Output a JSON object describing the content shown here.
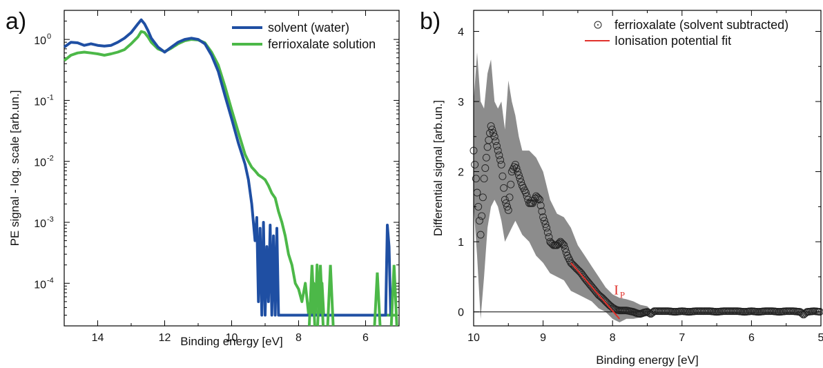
{
  "chart_data": [
    {
      "panel": "a)",
      "type": "line",
      "xlabel": "Binding energy [eV]",
      "ylabel": "PE signal - log. scale [arb.un.]",
      "xlim": [
        15,
        5
      ],
      "ylim": [
        2e-05,
        3
      ],
      "y_scale": "log",
      "x_ticks": [
        14,
        12,
        10,
        8,
        6
      ],
      "y_ticks": [
        {
          "value": 1,
          "base": "10",
          "exp": "0"
        },
        {
          "value": 0.1,
          "base": "10",
          "exp": "-1"
        },
        {
          "value": 0.01,
          "base": "10",
          "exp": "-2"
        },
        {
          "value": 0.001,
          "base": "10",
          "exp": "-3"
        },
        {
          "value": 0.0001,
          "base": "10",
          "exp": "-4"
        }
      ],
      "legend_position": "top-right",
      "series": [
        {
          "name": "solvent (water)",
          "color": "#1f4fa3",
          "x": [
            15.0,
            14.8,
            14.6,
            14.4,
            14.2,
            14.0,
            13.8,
            13.6,
            13.4,
            13.2,
            13.0,
            12.8,
            12.7,
            12.6,
            12.5,
            12.4,
            12.2,
            12.0,
            11.8,
            11.6,
            11.4,
            11.2,
            11.0,
            10.8,
            10.6,
            10.4,
            10.2,
            10.0,
            9.8,
            9.6,
            9.5,
            9.4,
            9.3,
            9.25,
            9.2,
            9.15,
            9.1,
            9.05,
            9.0,
            8.95,
            8.9,
            8.85,
            8.8,
            8.75,
            8.7,
            8.65,
            8.6,
            5.4,
            5.35,
            5.3,
            5.25,
            5.2
          ],
          "y": [
            0.75,
            0.9,
            0.88,
            0.8,
            0.85,
            0.8,
            0.78,
            0.8,
            0.9,
            1.05,
            1.3,
            1.8,
            2.1,
            1.8,
            1.4,
            1.05,
            0.75,
            0.62,
            0.75,
            0.9,
            1.0,
            1.05,
            1.0,
            0.85,
            0.55,
            0.3,
            0.12,
            0.05,
            0.02,
            0.009,
            0.005,
            0.002,
            0.0005,
            0.0012,
            5e-05,
            0.0008,
            3e-05,
            0.001,
            3e-05,
            0.0004,
            5e-05,
            0.0009,
            3e-05,
            0.0006,
            3e-05,
            0.0008,
            3e-05,
            3e-05,
            0.0009,
            0.0004,
            3e-05,
            3e-05
          ]
        },
        {
          "name": "ferrioxalate solution",
          "color": "#4cb848",
          "x": [
            15.0,
            14.8,
            14.6,
            14.4,
            14.2,
            14.0,
            13.8,
            13.6,
            13.4,
            13.2,
            13.0,
            12.8,
            12.7,
            12.6,
            12.5,
            12.4,
            12.2,
            12.0,
            11.8,
            11.6,
            11.4,
            11.2,
            11.0,
            10.8,
            10.6,
            10.4,
            10.2,
            10.0,
            9.8,
            9.6,
            9.5,
            9.4,
            9.3,
            9.2,
            9.1,
            9.0,
            8.9,
            8.8,
            8.7,
            8.6,
            8.5,
            8.4,
            8.3,
            8.2,
            8.1,
            8.0,
            7.9,
            7.8,
            7.7,
            7.65,
            7.6,
            7.55,
            7.5,
            7.45,
            7.4,
            7.35,
            7.3,
            7.25,
            7.2,
            7.1,
            7.0,
            6.9,
            6.8,
            6.7,
            6.6,
            6.5,
            6.4,
            6.3,
            6.2,
            6.1,
            6.0,
            5.9,
            5.8,
            5.7,
            5.6,
            5.5,
            5.4,
            5.3,
            5.2,
            5.1
          ],
          "y": [
            0.45,
            0.55,
            0.6,
            0.62,
            0.6,
            0.58,
            0.55,
            0.58,
            0.62,
            0.68,
            0.85,
            1.1,
            1.35,
            1.3,
            1.1,
            0.9,
            0.7,
            0.63,
            0.72,
            0.85,
            0.95,
            1.0,
            0.98,
            0.88,
            0.62,
            0.38,
            0.17,
            0.07,
            0.03,
            0.013,
            0.01,
            0.008,
            0.007,
            0.006,
            0.0055,
            0.005,
            0.004,
            0.003,
            0.0025,
            0.0015,
            0.001,
            0.0006,
            0.0003,
            0.0002,
            0.0001,
            8e-05,
            5e-05,
            0.0001,
            3e-05,
            5e-05,
            3e-05,
            0.0001,
            3e-05,
            0.0002,
            3e-05,
            3e-05,
            0.0001,
            3e-05,
            3e-05,
            3e-05,
            3e-05,
            3e-05,
            3e-05,
            3e-05,
            3e-05,
            3e-05,
            3e-05,
            3e-05,
            3e-05,
            3e-05,
            3e-05,
            3e-05,
            3e-05,
            3e-05,
            3e-05,
            3e-05,
            3e-05,
            3e-05,
            3e-05,
            3e-05
          ]
        }
      ],
      "green_spikes": [
        {
          "x": 7.6,
          "y": 0.0002
        },
        {
          "x": 7.35,
          "y": 0.0002
        },
        {
          "x": 7.05,
          "y": 0.0002
        },
        {
          "x": 5.65,
          "y": 0.00015
        },
        {
          "x": 5.15,
          "y": 0.0002
        }
      ]
    },
    {
      "panel": "b)",
      "type": "scatter",
      "xlabel": "Binding energy [eV]",
      "ylabel": "Differential  signal [arb.un.]",
      "xlim": [
        10,
        5
      ],
      "ylim": [
        -0.2,
        4.3
      ],
      "x_ticks": [
        10,
        9,
        8,
        7,
        6,
        5
      ],
      "y_ticks": [
        0,
        1,
        2,
        3,
        4
      ],
      "legend_position": "top-right",
      "zero_line": true,
      "series": [
        {
          "name": "ferrioxalate (solvent subtracted)",
          "marker": "open-circle",
          "color": "#222222",
          "x": [
            10.0,
            9.95,
            9.9,
            9.85,
            9.8,
            9.75,
            9.7,
            9.65,
            9.6,
            9.55,
            9.5,
            9.45,
            9.4,
            9.35,
            9.3,
            9.25,
            9.2,
            9.15,
            9.1,
            9.05,
            9.0,
            8.95,
            8.9,
            8.85,
            8.8,
            8.75,
            8.7,
            8.65,
            8.6,
            8.55,
            8.5,
            8.45,
            8.4,
            8.35,
            8.3,
            8.25,
            8.2,
            8.15,
            8.1,
            8.05,
            8.0,
            7.95,
            7.9,
            7.85,
            7.8,
            7.75,
            7.7,
            7.65,
            7.6,
            7.55,
            7.5,
            7.45,
            7.4,
            7.3,
            7.2,
            7.1,
            7.0,
            6.9,
            6.8,
            6.7,
            6.6,
            6.5,
            6.4,
            6.3,
            6.2,
            6.1,
            6.0,
            5.9,
            5.8,
            5.7,
            5.6,
            5.5,
            5.4,
            5.3,
            5.25,
            5.2,
            5.1,
            5.0
          ],
          "y": [
            2.3,
            1.7,
            1.1,
            1.9,
            2.35,
            2.65,
            2.5,
            2.3,
            2.1,
            1.6,
            1.45,
            2.0,
            2.1,
            1.95,
            1.8,
            1.7,
            1.55,
            1.55,
            1.65,
            1.6,
            1.35,
            1.2,
            1.0,
            0.95,
            0.95,
            1.0,
            0.95,
            0.8,
            0.7,
            0.65,
            0.6,
            0.55,
            0.48,
            0.42,
            0.36,
            0.3,
            0.24,
            0.2,
            0.15,
            0.1,
            0.06,
            0.03,
            0.02,
            0.02,
            0.02,
            0.01,
            0.0,
            -0.02,
            -0.03,
            -0.01,
            0.0,
            -0.03,
            0.01,
            0.01,
            0.01,
            0.0,
            0.01,
            0.0,
            0.01,
            0.01,
            0.01,
            0.0,
            0.01,
            0.01,
            0.01,
            0.0,
            0.01,
            0.0,
            0.01,
            0.01,
            0.0,
            0.01,
            0.01,
            0.0,
            -0.04,
            0.0,
            0.01,
            0.0
          ]
        }
      ],
      "error_band": {
        "color": "#8c8c8c",
        "x": [
          10.0,
          9.95,
          9.9,
          9.85,
          9.8,
          9.75,
          9.7,
          9.65,
          9.6,
          9.55,
          9.5,
          9.45,
          9.4,
          9.35,
          9.3,
          9.2,
          9.1,
          9.0,
          8.9,
          8.8,
          8.7,
          8.6,
          8.5,
          8.4,
          8.3,
          8.2,
          8.1,
          8.0,
          7.9,
          7.8,
          7.7,
          7.6,
          7.5,
          7.45
        ],
        "upper": [
          3.0,
          3.7,
          3.0,
          2.9,
          3.4,
          3.6,
          3.0,
          2.9,
          3.0,
          2.6,
          3.3,
          3.0,
          2.8,
          2.5,
          2.3,
          2.3,
          2.2,
          2.0,
          1.6,
          1.4,
          1.35,
          1.2,
          0.95,
          0.8,
          0.65,
          0.5,
          0.35,
          0.25,
          0.2,
          0.18,
          0.15,
          0.1,
          0.08,
          0.03
        ],
        "lower": [
          1.5,
          0.8,
          -0.1,
          0.5,
          1.2,
          1.5,
          1.6,
          1.5,
          1.3,
          1.0,
          1.1,
          1.2,
          1.3,
          1.2,
          1.1,
          1.0,
          0.8,
          0.7,
          0.55,
          0.5,
          0.45,
          0.3,
          0.25,
          0.2,
          0.15,
          0.05,
          0.0,
          -0.1,
          -0.15,
          -0.1,
          -0.1,
          -0.08,
          -0.06,
          -0.02
        ]
      },
      "fit_line": {
        "name": "Ionisation potential fit",
        "color": "#e0302a",
        "x": [
          8.6,
          7.9
        ],
        "y": [
          0.7,
          -0.1
        ]
      },
      "annotation": {
        "text": "I",
        "subscript": "P",
        "x": 7.98,
        "y": 0.25
      }
    }
  ]
}
